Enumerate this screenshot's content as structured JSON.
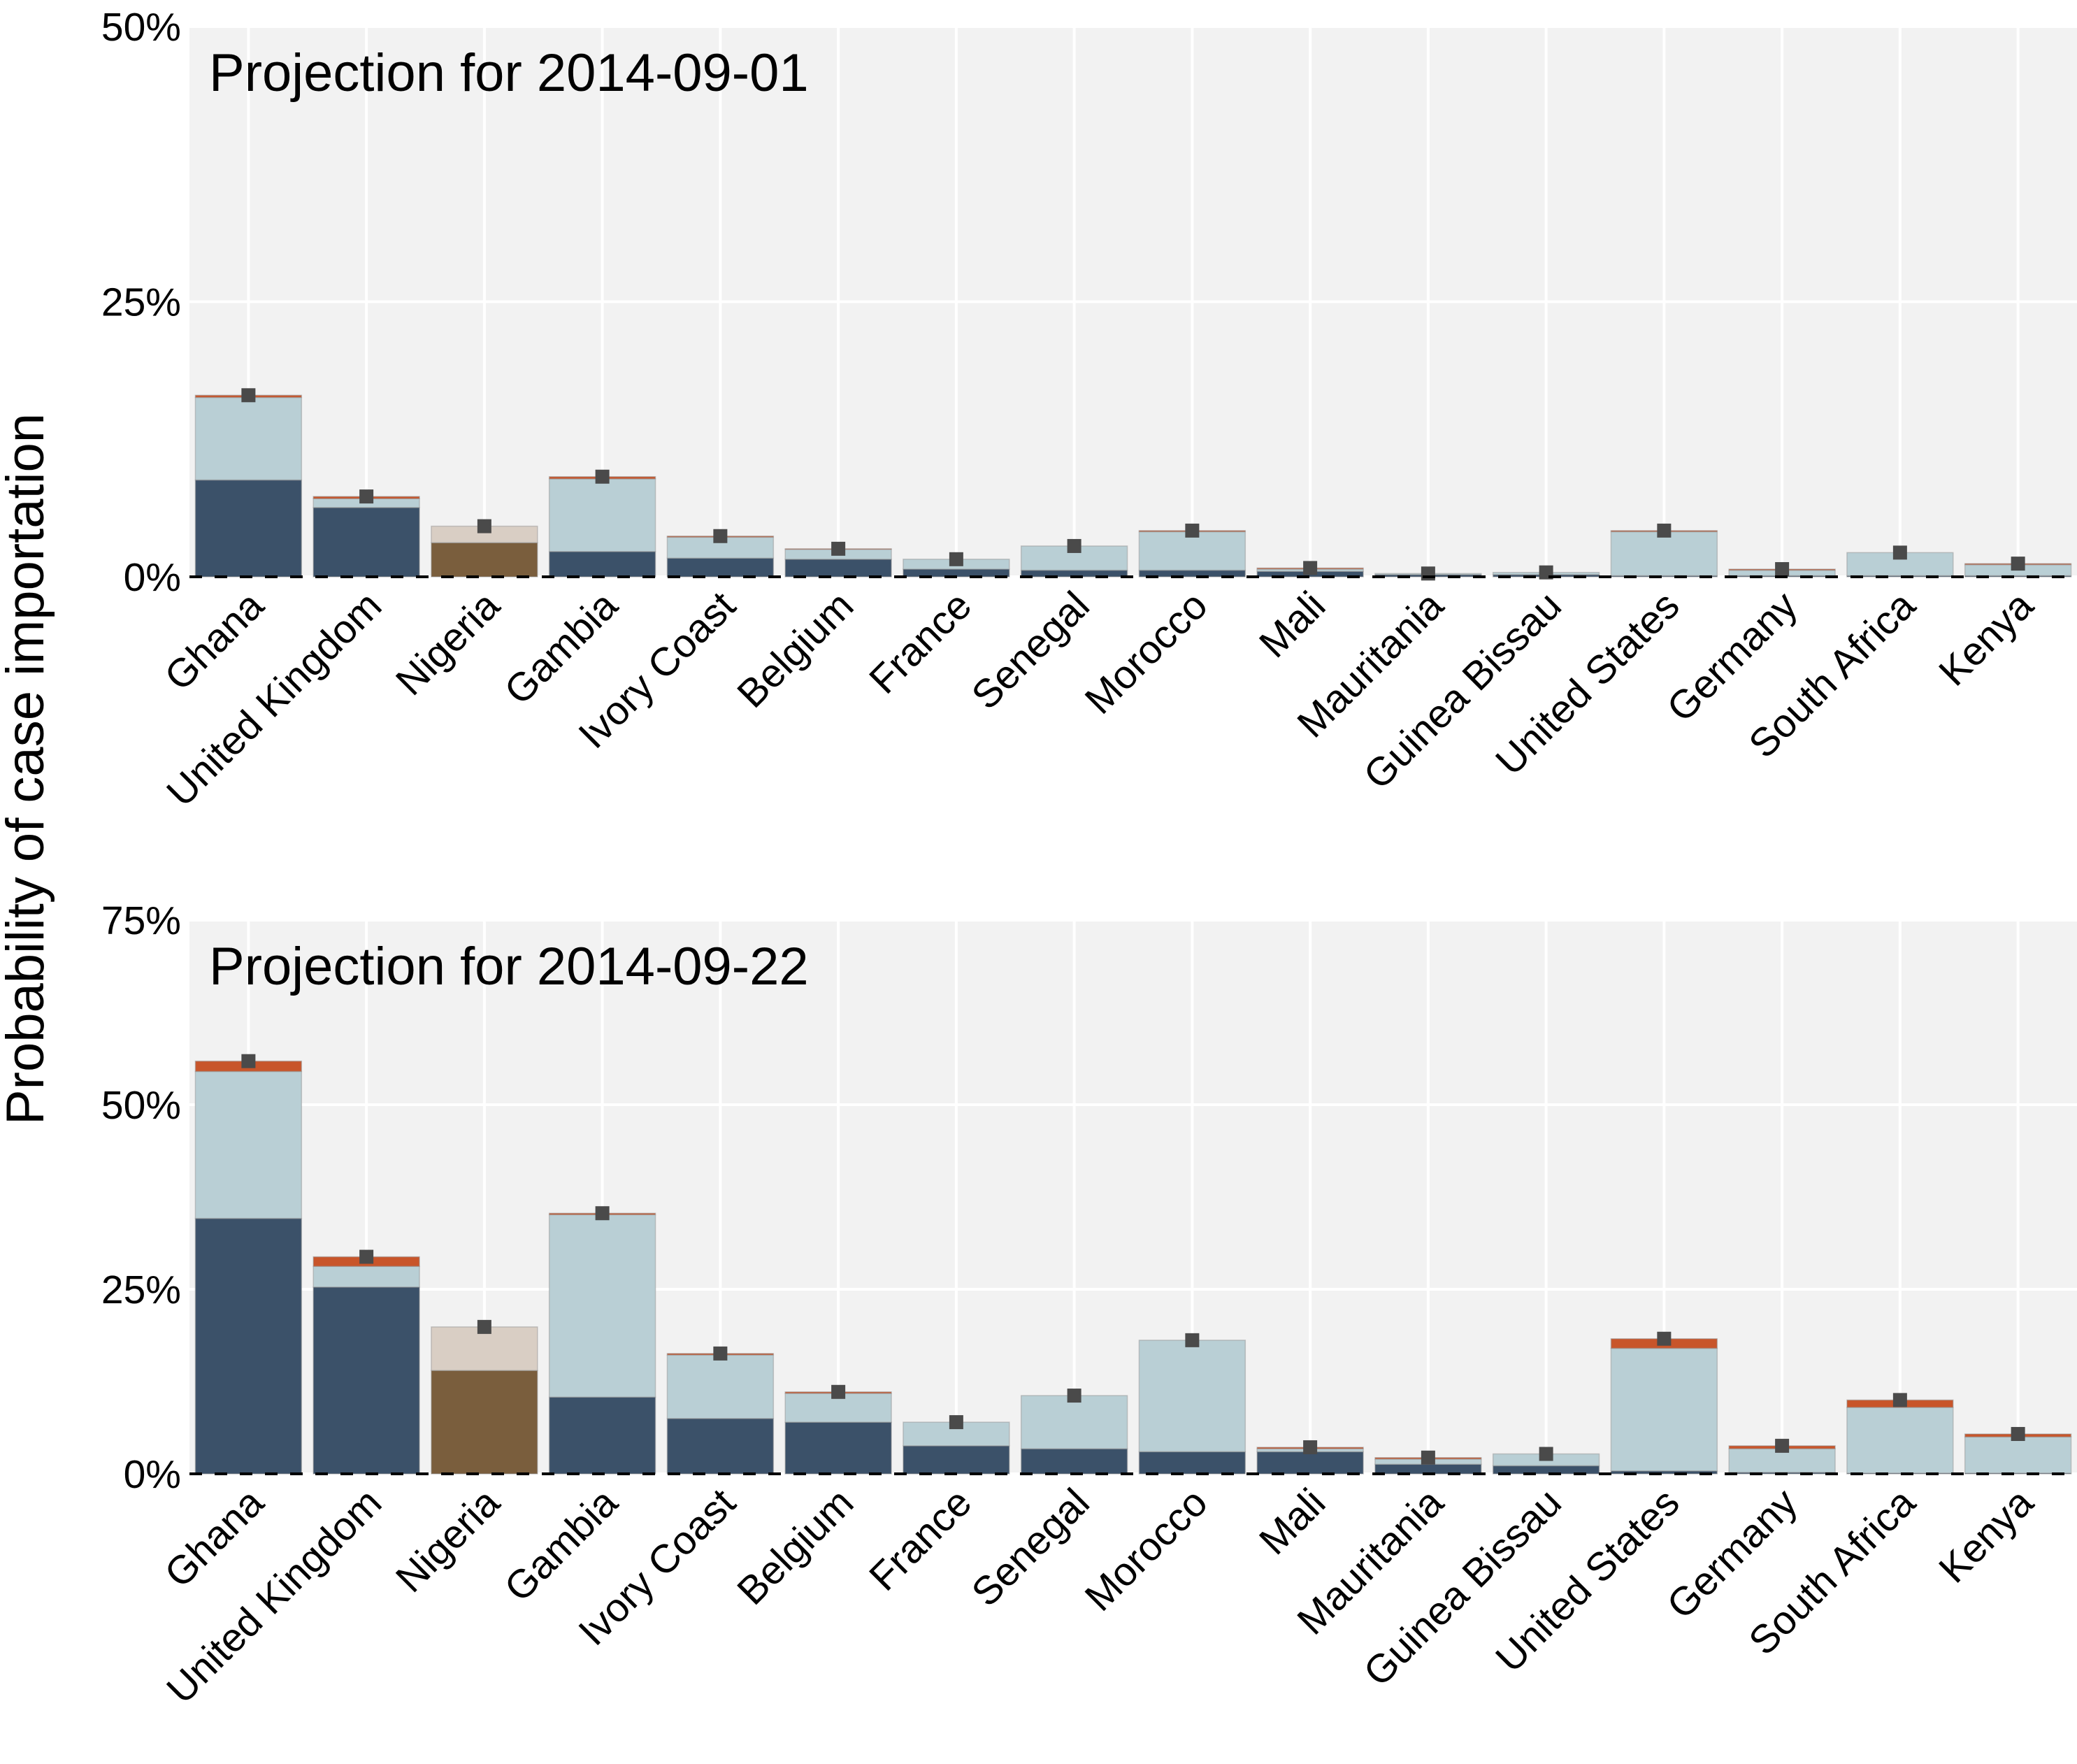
{
  "ylabel": "Probability of case importation",
  "colors": {
    "background": "#f2f2f2",
    "grid": "#ffffff",
    "segments": [
      "#3b5169",
      "#b9cfd5",
      "#c8552a"
    ],
    "highlight_segments": [
      "#7a5e3d",
      "#d9cec4",
      "#c8552a"
    ],
    "error_marker": "#4a4a4a",
    "zero_line": "#000000"
  },
  "chart_data": [
    {
      "type": "bar",
      "stacked": true,
      "title": "Projection for 2014-09-01",
      "ylabel": "Probability of case importation",
      "ylim": [
        0,
        50
      ],
      "yticks": [
        "0%",
        "25%",
        "50%"
      ],
      "ytick_values": [
        0,
        25,
        50
      ],
      "grid": true,
      "highlight_category": "Nigeria",
      "categories": [
        "Ghana",
        "United Kingdom",
        "Nigeria",
        "Gambia",
        "Ivory Coast",
        "Belgium",
        "France",
        "Senegal",
        "Morocco",
        "Mali",
        "Mauritania",
        "Guinea Bissau",
        "United States",
        "Germany",
        "South Africa",
        "Kenya"
      ],
      "series": [
        {
          "values": [
            8.8,
            6.3,
            3.1,
            2.3,
            1.7,
            1.6,
            0.7,
            0.6,
            0.6,
            0.5,
            0.2,
            0.2,
            0.1,
            0.1,
            0.1,
            0.1
          ]
        },
        {
          "values": [
            7.5,
            0.8,
            1.5,
            6.6,
            1.9,
            0.9,
            0.9,
            2.2,
            3.5,
            0.2,
            0.1,
            0.2,
            4.0,
            0.5,
            2.1,
            1.0
          ]
        },
        {
          "values": [
            0.2,
            0.2,
            0.0,
            0.2,
            0.1,
            0.05,
            0.0,
            0.0,
            0.1,
            0.1,
            0.0,
            0.0,
            0.1,
            0.1,
            0.0,
            0.1
          ]
        }
      ]
    },
    {
      "type": "bar",
      "stacked": true,
      "title": "Projection for 2014-09-22",
      "ylabel": "Probability of case importation",
      "ylim": [
        0,
        75
      ],
      "yticks": [
        "0%",
        "25%",
        "50%",
        "75%"
      ],
      "ytick_values": [
        0,
        25,
        50,
        75
      ],
      "grid": true,
      "highlight_category": "Nigeria",
      "categories": [
        "Ghana",
        "United Kingdom",
        "Nigeria",
        "Gambia",
        "Ivory Coast",
        "Belgium",
        "France",
        "Senegal",
        "Morocco",
        "Mali",
        "Mauritania",
        "Guinea Bissau",
        "United States",
        "Germany",
        "South Africa",
        "Kenya"
      ],
      "series": [
        {
          "values": [
            34.6,
            25.3,
            14.0,
            10.4,
            7.5,
            7.0,
            3.8,
            3.4,
            3.0,
            3.0,
            1.3,
            1.1,
            0.4,
            0.2,
            0.1,
            0.1
          ]
        },
        {
          "values": [
            19.9,
            2.8,
            5.9,
            24.7,
            8.6,
            3.9,
            3.2,
            7.2,
            15.1,
            0.4,
            0.7,
            1.6,
            16.6,
            3.2,
            8.9,
            4.9
          ]
        },
        {
          "values": [
            1.4,
            1.3,
            0.0,
            0.2,
            0.2,
            0.2,
            0.0,
            0.0,
            0.0,
            0.2,
            0.2,
            0.0,
            1.3,
            0.4,
            1.0,
            0.4
          ]
        }
      ]
    }
  ]
}
